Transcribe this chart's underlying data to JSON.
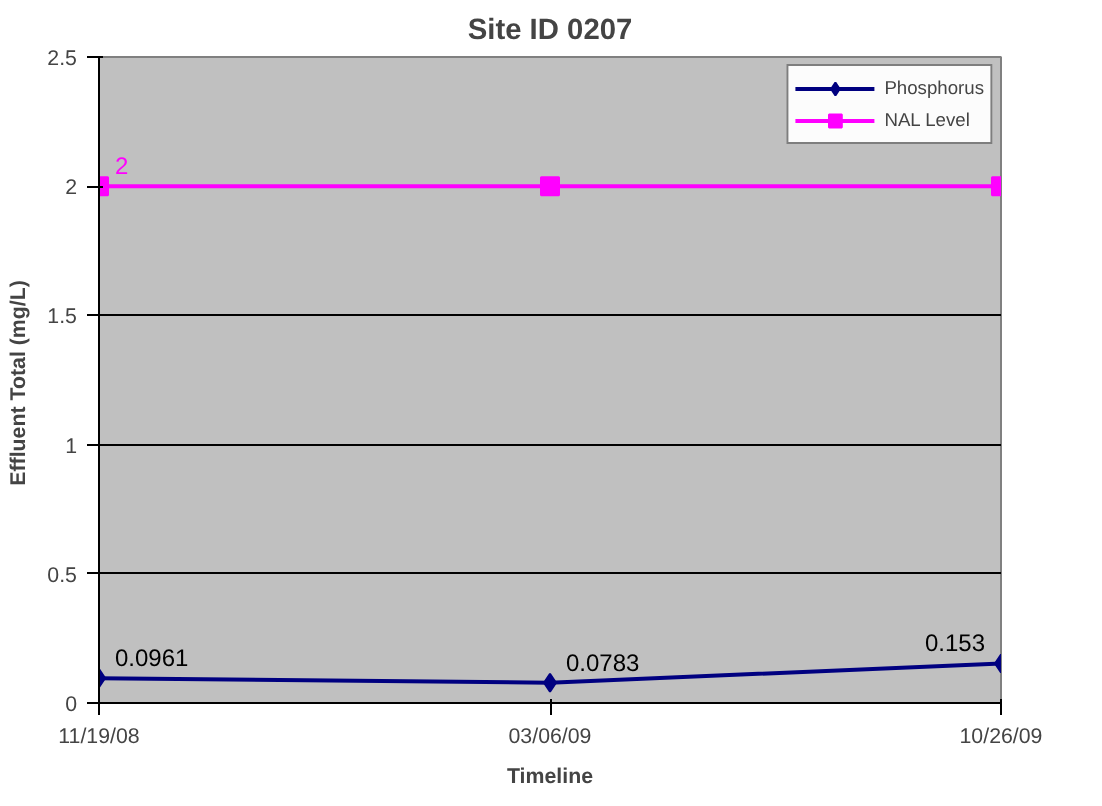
{
  "chart_data": {
    "type": "line",
    "title": "Site ID 0207",
    "xlabel": "Timeline",
    "ylabel": "Effluent Total  (mg/L)",
    "categories": [
      "11/19/08",
      "03/06/09",
      "10/26/09"
    ],
    "series": [
      {
        "name": "Phosphorus",
        "color": "#000080",
        "marker": "diamond",
        "values": [
          0.0961,
          0.0783,
          0.153
        ],
        "value_labels": [
          "0.0961",
          "0.0783",
          "0.153"
        ]
      },
      {
        "name": "NAL Level",
        "color": "#ff00ff",
        "marker": "square",
        "values": [
          2,
          2,
          2
        ],
        "value_labels": [
          "2",
          null,
          null
        ]
      }
    ],
    "ylim": [
      0,
      2.5
    ],
    "yticks": [
      0,
      0.5,
      1,
      1.5,
      2,
      2.5
    ],
    "grid": "y",
    "legend": "top right"
  }
}
